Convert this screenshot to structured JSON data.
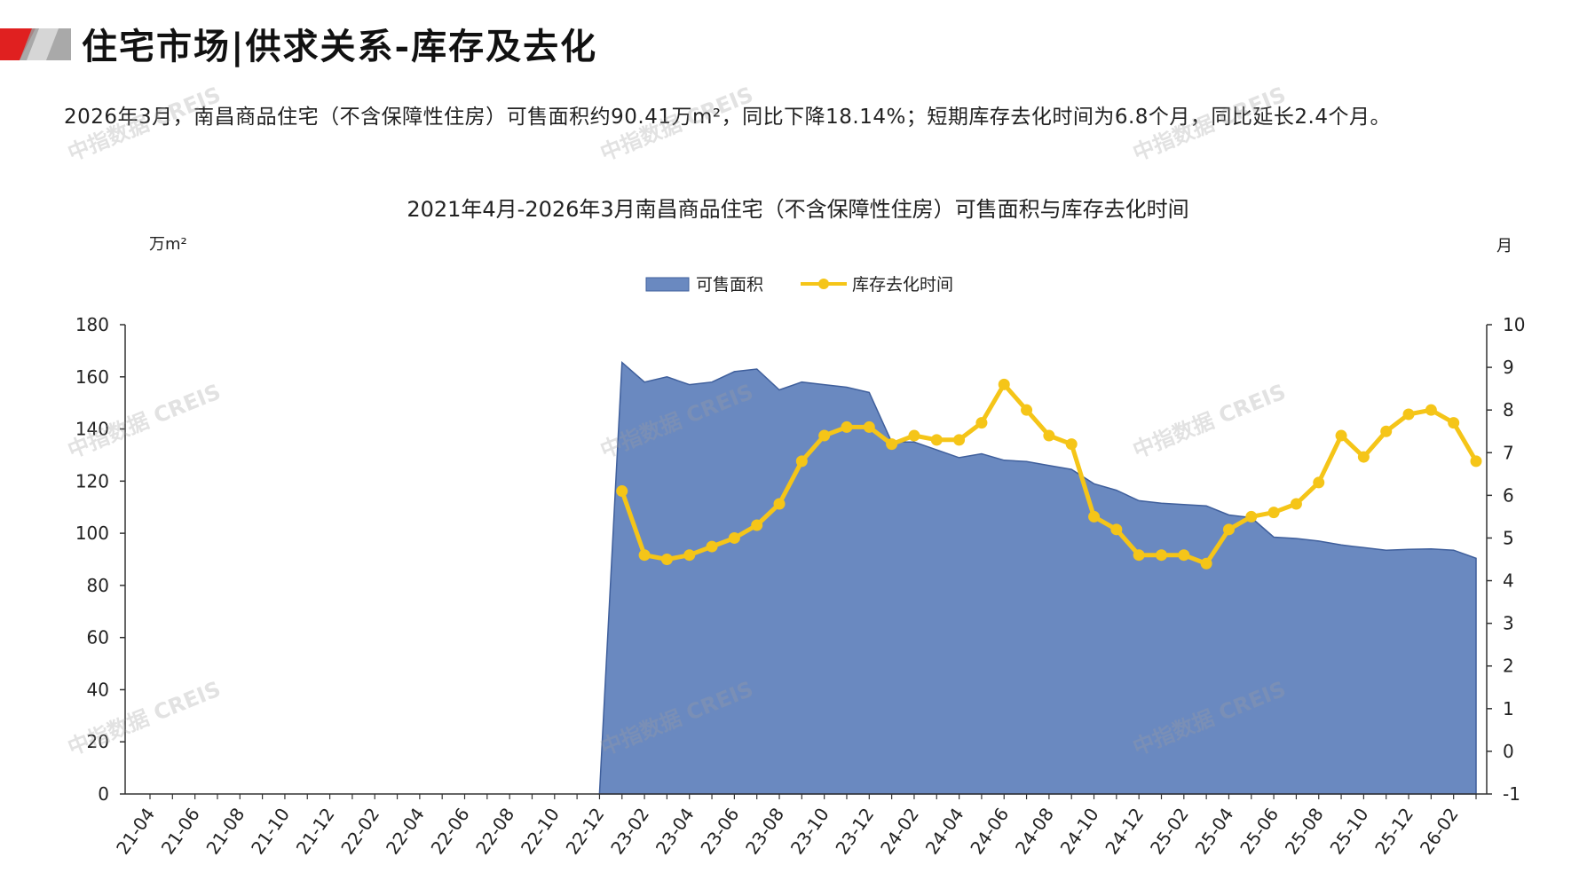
{
  "header": {
    "title": "住宅市场|供求关系-库存及去化",
    "summary": "2026年3月，南昌商品住宅（不含保障性住房）可售面积约90.41万m²，同比下降18.14%；短期库存去化时间为6.8个月，同比延长2.4个月。"
  },
  "watermark_text": "中指数据 CREIS",
  "colors": {
    "area": "#6a89c0",
    "area_edge": "#3f5f9c",
    "line": "#f5c518",
    "brand_red": "#e02020",
    "brand_gray": "#9a9a9a"
  },
  "chart_data": {
    "type": "area+line",
    "title": "2021年4月-2026年3月南昌商品住宅（不含保障性住房）可售面积与库存去化时间",
    "y_left_label": "万m²",
    "y_right_label": "月",
    "y_left_range": [
      0,
      180
    ],
    "y_left_ticks": [
      "0",
      "20",
      "40",
      "60",
      "80",
      "100",
      "120",
      "140",
      "160",
      "180"
    ],
    "y_right_range": [
      -1,
      10
    ],
    "y_right_ticks": [
      "-1",
      "0",
      "1",
      "2",
      "3",
      "4",
      "5",
      "6",
      "7",
      "8",
      "9",
      "10"
    ],
    "x_ticks": [
      "21-04",
      "21-06",
      "21-08",
      "21-10",
      "21-12",
      "22-02",
      "22-04",
      "22-06",
      "22-08",
      "22-10",
      "22-12",
      "23-02",
      "23-04",
      "23-06",
      "23-08",
      "23-10",
      "23-12",
      "24-02",
      "24-04",
      "24-06",
      "24-08",
      "24-10",
      "24-12",
      "25-02",
      "25-04",
      "25-06",
      "25-08",
      "25-10",
      "25-12",
      "26-02"
    ],
    "legend": {
      "position": "top-center",
      "entries": [
        "可售面积",
        "库存去化时间"
      ]
    },
    "series": [
      {
        "name": "可售面积",
        "kind": "area",
        "axis": "left",
        "start_month": "22-12",
        "values": [
          0,
          165.5,
          158,
          160,
          157,
          158,
          162,
          163,
          155,
          158,
          157,
          156,
          154,
          135,
          135,
          132,
          129,
          130.5,
          128,
          127.5,
          126,
          124.5,
          119,
          116.5,
          112.5,
          111.5,
          111,
          110.5,
          107,
          106,
          98.5,
          98,
          97,
          95.5,
          94.5,
          93.5,
          93.8,
          94,
          93.5,
          90.41
        ]
      },
      {
        "name": "库存去化时间",
        "kind": "line",
        "axis": "right",
        "start_month": "23-01",
        "values": [
          6.1,
          4.6,
          4.5,
          4.6,
          4.8,
          5.0,
          5.3,
          5.8,
          6.8,
          7.4,
          7.6,
          7.6,
          7.2,
          7.4,
          7.3,
          7.3,
          7.7,
          8.6,
          8.0,
          7.4,
          7.2,
          5.5,
          5.2,
          4.6,
          4.6,
          4.6,
          4.4,
          5.2,
          5.5,
          5.6,
          5.8,
          6.3,
          7.4,
          6.9,
          7.5,
          7.9,
          8.0,
          7.7,
          6.8
        ]
      }
    ]
  }
}
